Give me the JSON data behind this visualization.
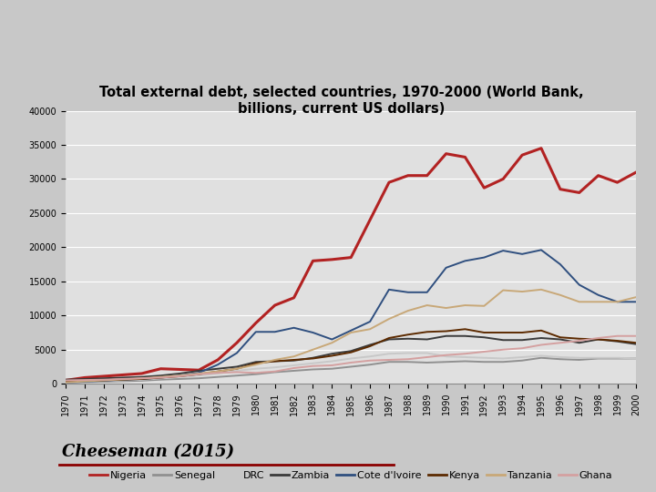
{
  "title": "Total external debt, selected countries, 1970-2000 (World Bank,\nbillions, current US dollars)",
  "years": [
    1970,
    1971,
    1972,
    1973,
    1974,
    1975,
    1976,
    1977,
    1978,
    1979,
    1980,
    1981,
    1982,
    1983,
    1984,
    1985,
    1986,
    1987,
    1988,
    1989,
    1990,
    1991,
    1992,
    1993,
    1994,
    1995,
    1996,
    1997,
    1998,
    1999,
    2000
  ],
  "Nigeria": [
    500,
    900,
    1100,
    1300,
    1500,
    2200,
    2100,
    2000,
    3500,
    6000,
    8900,
    11500,
    12600,
    18000,
    18200,
    18500,
    24000,
    29500,
    30500,
    30500,
    33700,
    33200,
    28700,
    30000,
    33500,
    34500,
    28500,
    28000,
    30500,
    29500,
    31000
  ],
  "Senegal": [
    200,
    250,
    300,
    370,
    450,
    600,
    700,
    800,
    1000,
    1200,
    1400,
    1700,
    1900,
    2100,
    2200,
    2500,
    2800,
    3200,
    3200,
    3100,
    3200,
    3300,
    3200,
    3200,
    3400,
    3800,
    3600,
    3500,
    3700,
    3700,
    3700
  ],
  "DRC": [
    300,
    350,
    400,
    500,
    600,
    800,
    1000,
    1200,
    1500,
    1900,
    2200,
    2400,
    2700,
    3000,
    3300,
    3700,
    4000,
    4400,
    4500,
    4500,
    4000,
    3900,
    3800,
    3700,
    3900,
    4100,
    3900,
    3800,
    3800,
    3800,
    3700
  ],
  "Zambia": [
    600,
    700,
    800,
    900,
    1000,
    1200,
    1500,
    1900,
    2200,
    2500,
    3200,
    3300,
    3400,
    3800,
    4400,
    4800,
    5700,
    6500,
    6600,
    6500,
    7000,
    7000,
    6800,
    6400,
    6400,
    6700,
    6500,
    6000,
    6500,
    6200,
    5800
  ],
  "Cote_dIvoire": [
    200,
    300,
    450,
    600,
    700,
    900,
    1200,
    1600,
    2800,
    4500,
    7600,
    7600,
    8200,
    7500,
    6500,
    7800,
    9100,
    13800,
    13400,
    13400,
    17000,
    18000,
    18500,
    19500,
    19000,
    19600,
    17500,
    14500,
    13000,
    12000,
    12000
  ],
  "Kenya": [
    400,
    450,
    500,
    600,
    700,
    900,
    1100,
    1400,
    1800,
    2200,
    3000,
    3300,
    3500,
    3700,
    4100,
    4600,
    5500,
    6700,
    7200,
    7600,
    7700,
    8000,
    7500,
    7500,
    7500,
    7800,
    6800,
    6600,
    6500,
    6300,
    6000
  ],
  "Tanzania": [
    200,
    350,
    500,
    650,
    800,
    1000,
    1200,
    1500,
    1800,
    2200,
    2800,
    3500,
    4000,
    5000,
    6000,
    7500,
    8000,
    9500,
    10700,
    11500,
    11100,
    11500,
    11400,
    13700,
    13500,
    13800,
    13000,
    12000,
    12000,
    12000,
    12700
  ],
  "Ghana": [
    500,
    550,
    600,
    700,
    800,
    900,
    1100,
    1400,
    1600,
    1700,
    1600,
    1800,
    2300,
    2600,
    2700,
    3100,
    3400,
    3500,
    3600,
    3900,
    4200,
    4400,
    4700,
    5000,
    5200,
    5700,
    6000,
    6300,
    6700,
    7000,
    7000
  ],
  "colors": {
    "Nigeria": "#B22222",
    "Senegal": "#909090",
    "DRC": "#C8C8C8",
    "Zambia": "#3A3A3A",
    "Cote_dIvoire": "#2F4F7F",
    "Kenya": "#5C2A00",
    "Tanzania": "#C8A878",
    "Ghana": "#D4A0A0"
  },
  "legend_labels": [
    "Nigeria",
    "Senegal",
    "DRC",
    "Zambia",
    "Cote d'Ivoire",
    "Kenya",
    "Tanzania",
    "Ghana"
  ],
  "ylim": [
    0,
    40000
  ],
  "yticks": [
    0,
    5000,
    10000,
    15000,
    20000,
    25000,
    30000,
    35000,
    40000
  ],
  "header_color": "#8B0000",
  "bg_color": "#C8C8C8",
  "plot_bg": "#E0E0E0",
  "citation": "Cheeseman (2015)",
  "title_fontsize": 10.5,
  "tick_fontsize": 7,
  "legend_fontsize": 8,
  "citation_fontsize": 13
}
